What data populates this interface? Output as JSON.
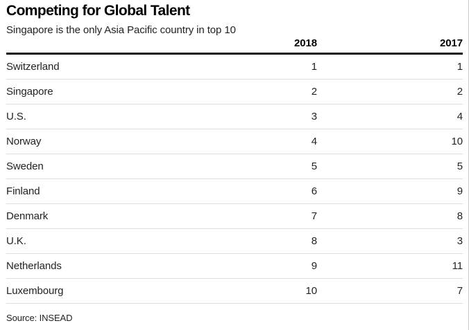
{
  "page": {
    "title": "Competing for Global Talent",
    "subtitle": "Singapore is the only Asia Pacific country in top 10",
    "source": "Source: INSEAD"
  },
  "chart_data": {
    "type": "table",
    "title": "Competing for Global Talent",
    "subtitle": "Singapore is the only Asia Pacific country in top 10",
    "source": "Source: INSEAD",
    "columns": [
      "",
      "2018",
      "2017"
    ],
    "rows": [
      [
        "Switzerland",
        "1",
        "1"
      ],
      [
        "Singapore",
        "2",
        "2"
      ],
      [
        "U.S.",
        "3",
        "4"
      ],
      [
        "Norway",
        "4",
        "10"
      ],
      [
        "Sweden",
        "5",
        "5"
      ],
      [
        "Finland",
        "6",
        "9"
      ],
      [
        "Denmark",
        "7",
        "8"
      ],
      [
        "U.K.",
        "8",
        "3"
      ],
      [
        "Netherlands",
        "9",
        "11"
      ],
      [
        "Luxembourg",
        "10",
        "7"
      ]
    ],
    "layout_hints": {
      "grid": "horizontal row dividers only",
      "value_alignment": "right",
      "legend_position": "none"
    }
  },
  "colors": {
    "title": "#000000",
    "body_text": "#222222",
    "header_rule": "#111111",
    "row_divider": "#dddddd",
    "right_edge_border": "#cccccc",
    "background": "#ffffff"
  }
}
